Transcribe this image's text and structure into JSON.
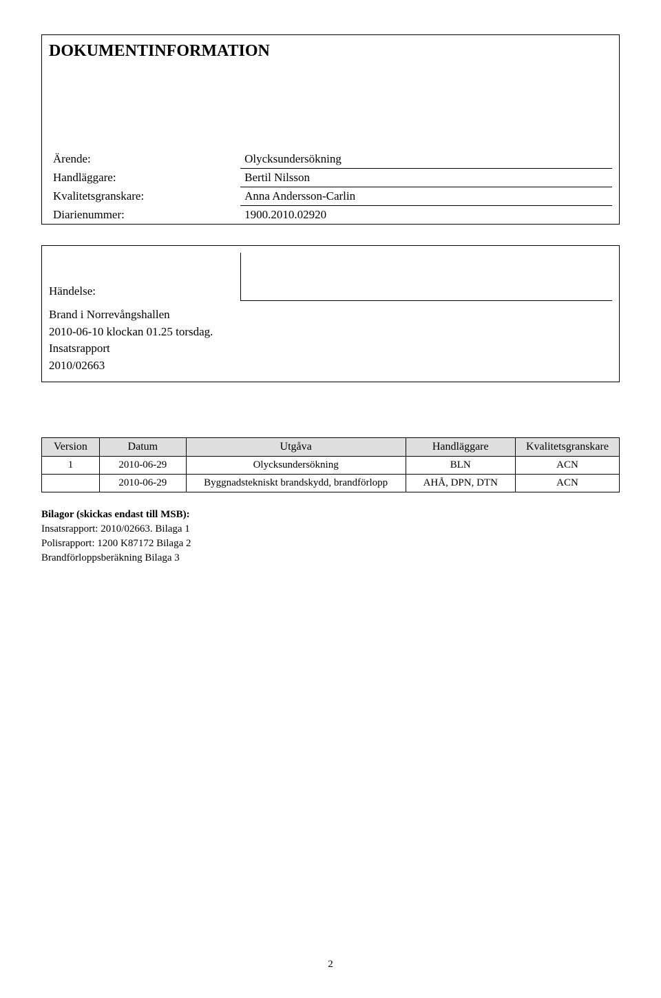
{
  "heading": "DOKUMENTINFORMATION",
  "info": {
    "arende_label": "Ärende:",
    "arende_value": "Olycksundersökning",
    "handlaggare_label": "Handläggare:",
    "handlaggare_value": "Bertil Nilsson",
    "kvalitet_label": "Kvalitetsgranskare:",
    "kvalitet_value": "Anna Andersson-Carlin",
    "diarie_label": "Diarienummer:",
    "diarie_value": "1900.2010.02920"
  },
  "event": {
    "label": "Händelse:",
    "line1": "Brand i Norrevångshallen",
    "line2": "2010-06-10 klockan 01.25 torsdag.",
    "line3": "Insatsrapport",
    "line4": "2010/02663"
  },
  "version_table": {
    "headers": {
      "version": "Version",
      "datum": "Datum",
      "utgava": "Utgåva",
      "handlaggare": "Handläggare",
      "kvalitet": "Kvalitetsgranskare"
    },
    "rows": [
      {
        "version": "1",
        "datum": "2010-06-29",
        "utgava": "Olycksundersökning",
        "handlaggare": "BLN",
        "kvalitet": "ACN"
      },
      {
        "version": "",
        "datum": "2010-06-29",
        "utgava": "Byggnadstekniskt brandskydd, brandförlopp",
        "handlaggare": "AHÅ, DPN, DTN",
        "kvalitet": "ACN"
      }
    ]
  },
  "attachments": {
    "title": "Bilagor (skickas endast till MSB):",
    "line1": "Insatsrapport: 2010/02663. Bilaga 1",
    "line2": "Polisrapport: 1200 K87172 Bilaga 2",
    "line3": "Brandförloppsberäkning Bilaga 3"
  },
  "page_number": "2"
}
